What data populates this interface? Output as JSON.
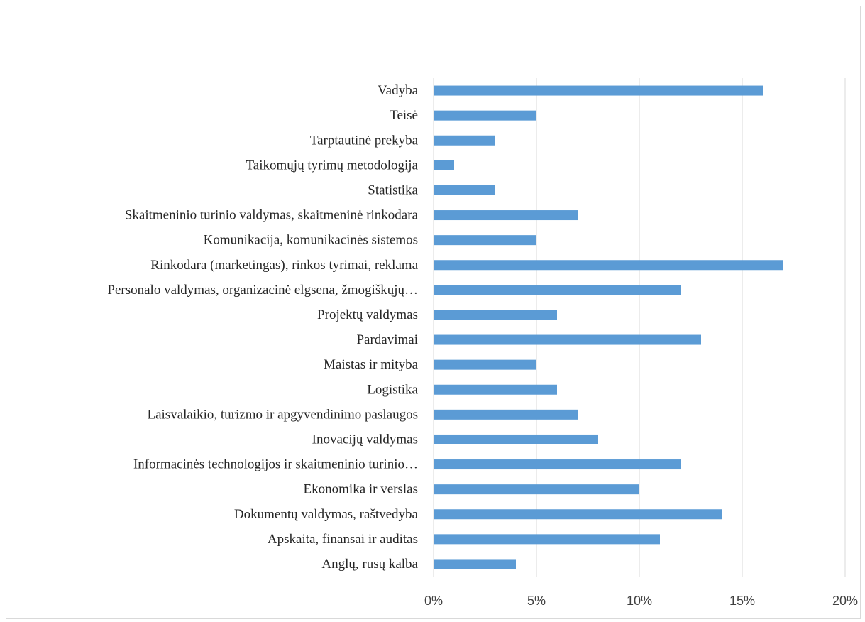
{
  "chart_data": {
    "type": "bar",
    "orientation": "horizontal",
    "categories": [
      "Vadyba",
      "Teisė",
      "Tarptautinė prekyba",
      "Taikomųjų tyrimų metodologija",
      "Statistika",
      "Skaitmeninio turinio valdymas, skaitmeninė rinkodara",
      "Komunikacija, komunikacinės sistemos",
      "Rinkodara (marketingas), rinkos tyrimai, reklama",
      "Personalo valdymas, organizacinė elgsena, žmogiškųjų…",
      "Projektų valdymas",
      "Pardavimai",
      "Maistas ir mityba",
      "Logistika",
      "Laisvalaikio, turizmo ir apgyvendinimo paslaugos",
      "Inovacijų valdymas",
      "Informacinės technologijos ir skaitmeninio turinio…",
      "Ekonomika ir verslas",
      "Dokumentų valdymas, raštvedyba",
      "Apskaita, finansai ir auditas",
      "Anglų, rusų kalba"
    ],
    "values": [
      16,
      5,
      3,
      1,
      3,
      7,
      5,
      17,
      12,
      6,
      13,
      5,
      6,
      7,
      8,
      12,
      10,
      14,
      11,
      4
    ],
    "xlim": [
      0,
      20
    ],
    "xticks": [
      "0%",
      "5%",
      "10%",
      "15%",
      "20%"
    ],
    "xtick_values": [
      0,
      5,
      10,
      15,
      20
    ],
    "unit": "%",
    "title": "",
    "xlabel": "",
    "ylabel": "",
    "grid": true,
    "bar_color": "#5b9bd5",
    "grid_color": "#d9d9d9"
  }
}
